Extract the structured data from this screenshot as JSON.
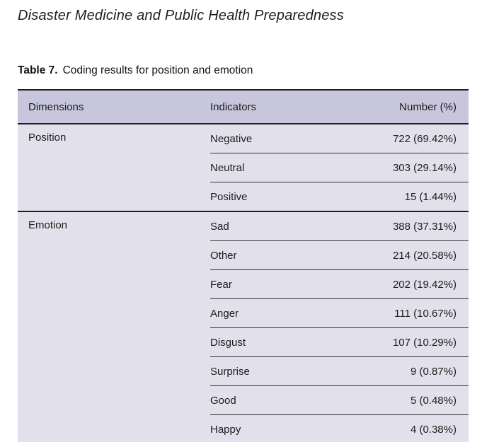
{
  "page": {
    "journal_title": "Disaster Medicine and Public Health Preparedness",
    "table_caption_label": "Table 7.",
    "table_caption_text": "Coding results for position and emotion"
  },
  "table": {
    "columns": [
      "Dimensions",
      "Indicators",
      "Number (%)"
    ],
    "groups": [
      {
        "dimension": "Position",
        "rows": [
          {
            "indicator": "Negative",
            "number": "722 (69.42%)"
          },
          {
            "indicator": "Neutral",
            "number": "303 (29.14%)"
          },
          {
            "indicator": "Positive",
            "number": "15 (1.44%)"
          }
        ]
      },
      {
        "dimension": "Emotion",
        "rows": [
          {
            "indicator": "Sad",
            "number": "388 (37.31%)"
          },
          {
            "indicator": "Other",
            "number": "214 (20.58%)"
          },
          {
            "indicator": "Fear",
            "number": "202 (19.42%)"
          },
          {
            "indicator": "Anger",
            "number": "111 (10.67%)"
          },
          {
            "indicator": "Disgust",
            "number": "107 (10.29%)"
          },
          {
            "indicator": "Surprise",
            "number": "9 (0.87%)"
          },
          {
            "indicator": "Good",
            "number": "5 (0.48%)"
          },
          {
            "indicator": "Happy",
            "number": "4 (0.38%)"
          }
        ]
      }
    ],
    "colors": {
      "header_bg": "#c8c6dc",
      "body_bg": "#e2e1eb",
      "border_dark": "#1d1d1d",
      "border_darkest": "#0a0a0a",
      "divider": "#333333"
    }
  }
}
